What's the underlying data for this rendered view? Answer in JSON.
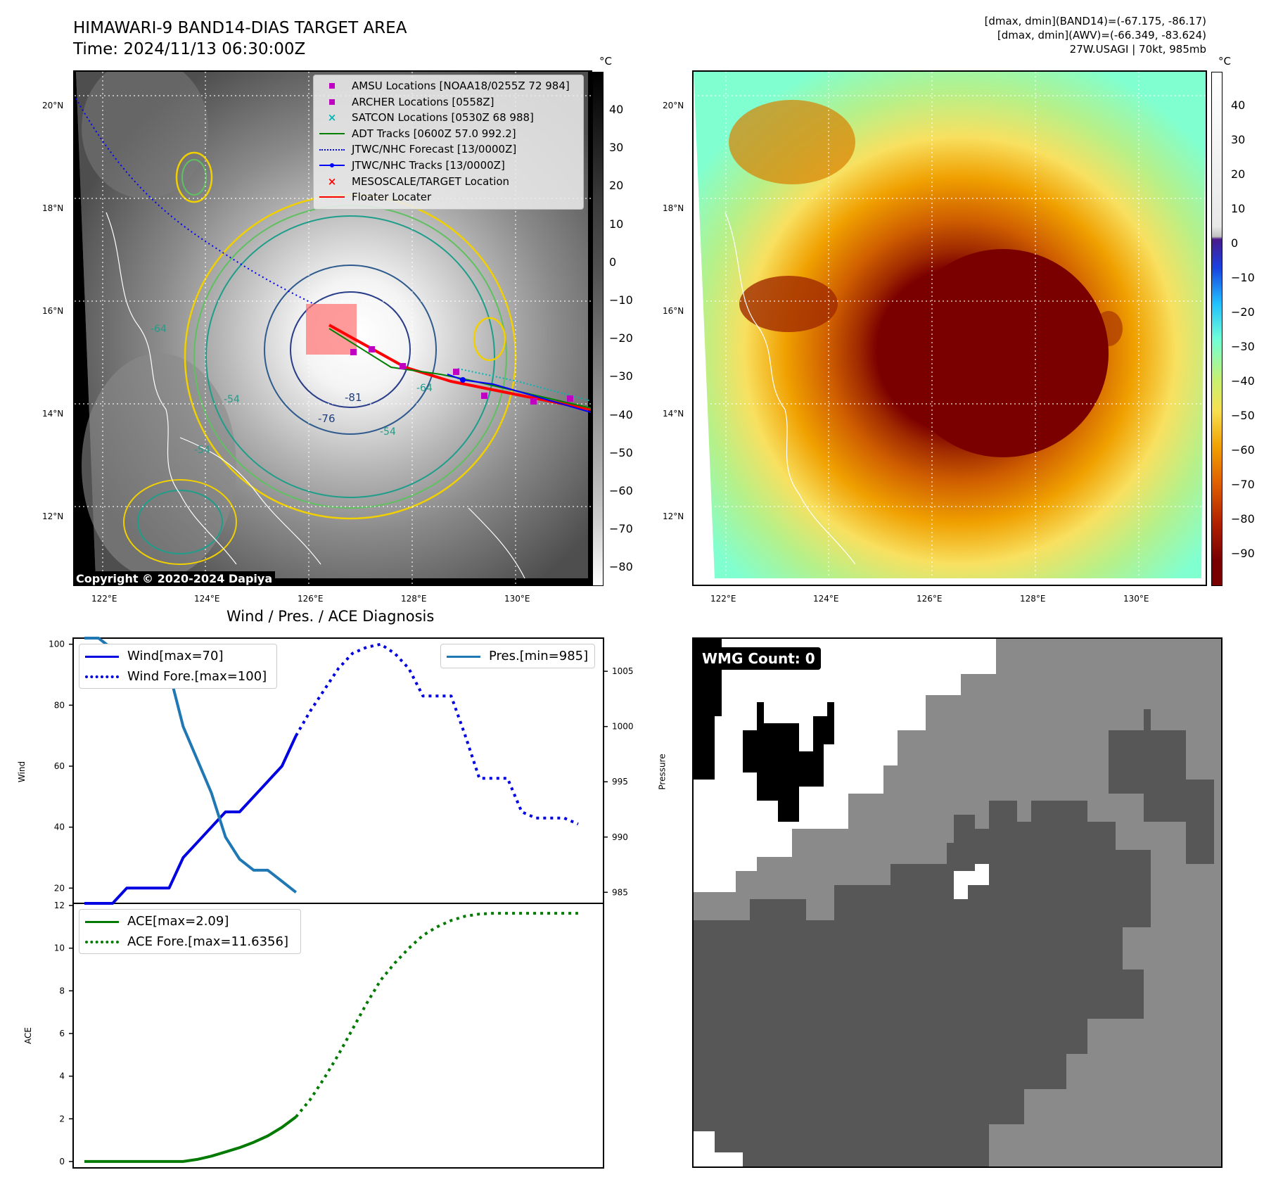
{
  "title_line1": "HIMAWARI-9 BAND14-DIAS TARGET AREA",
  "title_line2": "Time: 2024/11/13 06:30:00Z",
  "info_line1": "[dmax, dmin](BAND14)=(-67.175, -86.17)",
  "info_line2": "[dmax, dmin](AWV)=(-66.349, -83.624)",
  "info_line3": "27W.USAGI | 70kt, 985mb",
  "copyright": "Copyright © 2020-2024 Dapiya",
  "wmg_label": "WMG Count: 0",
  "colorbar_unit": "°C",
  "colorbar_left_ticks": [
    "40",
    "30",
    "20",
    "10",
    "0",
    "−10",
    "−20",
    "−30",
    "−40",
    "−50",
    "−60",
    "−70",
    "−80"
  ],
  "colorbar_right_ticks": [
    "40",
    "30",
    "20",
    "10",
    "0",
    "−10",
    "−20",
    "−30",
    "−40",
    "−50",
    "−60",
    "−70",
    "−80",
    "−90"
  ],
  "map_lat_ticks": [
    "20°N",
    "18°N",
    "16°N",
    "14°N",
    "12°N"
  ],
  "map_lon_ticks": [
    "122°E",
    "124°E",
    "126°E",
    "128°E",
    "130°E"
  ],
  "contour_labels": [
    "-54",
    "-81",
    "-76",
    "-64",
    "-54",
    "-64",
    "-54"
  ],
  "map_legend": [
    {
      "label": "AMSU Locations [NOAA18/0255Z 72 984]",
      "symbol": "square",
      "color": "#c000c0"
    },
    {
      "label": "ARCHER Locations [0558Z]",
      "symbol": "square",
      "color": "#c000c0"
    },
    {
      "label": "SATCON Locations [0530Z 68 988]",
      "symbol": "x",
      "color": "#00b5b5"
    },
    {
      "label": "ADT Tracks [0600Z 57.0 992.2]",
      "symbol": "line",
      "color": "#008000"
    },
    {
      "label": "JTWC/NHC Forecast [13/0000Z]",
      "symbol": "dotted",
      "color": "#0000ff"
    },
    {
      "label": "JTWC/NHC Tracks [13/0000Z]",
      "symbol": "line-dot",
      "color": "#0000ff"
    },
    {
      "label": "MESOSCALE/TARGET Location",
      "symbol": "x",
      "color": "#ff0000"
    },
    {
      "label": "Floater Locater",
      "symbol": "line",
      "color": "#ff0000"
    }
  ],
  "diag_title": "Wind / Pres. / ACE Diagnosis",
  "wind_axis_label": "Wind",
  "pressure_axis_label": "Pressure",
  "ace_axis_label": "ACE",
  "wind_legend": [
    {
      "label": "Wind[max=70]",
      "style": "solid",
      "color": "#0000e0"
    },
    {
      "label": "Wind Fore.[max=100]",
      "style": "dotted",
      "color": "#0000e0"
    }
  ],
  "pres_legend": [
    {
      "label": "Pres.[min=985]",
      "style": "solid",
      "color": "#1f77b4"
    }
  ],
  "ace_legend": [
    {
      "label": "ACE[max=2.09]",
      "style": "solid",
      "color": "#007a00"
    },
    {
      "label": "ACE Fore.[max=11.6356]",
      "style": "dotted",
      "color": "#007a00"
    }
  ],
  "chart_data": [
    {
      "type": "line",
      "ylabel": "Wind",
      "ylim": [
        15,
        102
      ],
      "yticks": [
        20,
        40,
        60,
        80,
        100
      ],
      "series": [
        {
          "name": "Wind[max=70]",
          "x": [
            0,
            1,
            2,
            3,
            4,
            5,
            6,
            7,
            8,
            9,
            10,
            11,
            12,
            13,
            14,
            15
          ],
          "values": [
            15,
            15,
            15,
            20,
            20,
            20,
            20,
            30,
            35,
            40,
            45,
            45,
            50,
            55,
            60,
            70
          ]
        },
        {
          "name": "Wind Fore.[max=100]",
          "x": [
            15,
            16,
            17,
            18,
            19,
            20,
            21,
            22,
            23,
            24,
            25,
            26,
            27,
            28,
            29,
            30,
            31,
            32,
            33,
            34,
            35
          ],
          "values": [
            70,
            78,
            85,
            92,
            97,
            99,
            100,
            97,
            92,
            83,
            83,
            83,
            70,
            56,
            56,
            56,
            45,
            43,
            43,
            43,
            41
          ]
        }
      ]
    },
    {
      "type": "line",
      "ylabel": "Pressure",
      "ylim": [
        984,
        1008
      ],
      "yticks": [
        985,
        990,
        995,
        1000,
        1005
      ],
      "series": [
        {
          "name": "Pres.[min=985]",
          "x": [
            0,
            1,
            2,
            3,
            4,
            5,
            6,
            7,
            8,
            9,
            10,
            11,
            12,
            13,
            14,
            15
          ],
          "values": [
            1008,
            1008,
            1007,
            1007,
            1006,
            1006,
            1005,
            1000,
            997,
            994,
            990,
            988,
            987,
            987,
            986,
            985
          ]
        }
      ]
    },
    {
      "type": "line",
      "ylabel": "ACE",
      "ylim": [
        -0.3,
        12.1
      ],
      "yticks": [
        0,
        2,
        4,
        6,
        8,
        10,
        12
      ],
      "series": [
        {
          "name": "ACE[max=2.09]",
          "x": [
            0,
            1,
            2,
            3,
            4,
            5,
            6,
            7,
            8,
            9,
            10,
            11,
            12,
            13,
            14,
            15
          ],
          "values": [
            0,
            0,
            0,
            0,
            0,
            0,
            0,
            0,
            0.1,
            0.25,
            0.45,
            0.65,
            0.9,
            1.2,
            1.6,
            2.09
          ]
        },
        {
          "name": "ACE Fore.[max=11.6356]",
          "x": [
            15,
            16,
            17,
            18,
            19,
            20,
            21,
            22,
            23,
            24,
            25,
            26,
            27,
            28,
            29,
            30,
            31,
            32,
            33,
            34,
            35
          ],
          "values": [
            2.09,
            2.9,
            3.9,
            5.0,
            6.2,
            7.4,
            8.5,
            9.3,
            10.0,
            10.6,
            11.0,
            11.3,
            11.5,
            11.6,
            11.6356,
            11.6356,
            11.6356,
            11.6356,
            11.6356,
            11.6356,
            11.6356
          ]
        }
      ]
    }
  ]
}
